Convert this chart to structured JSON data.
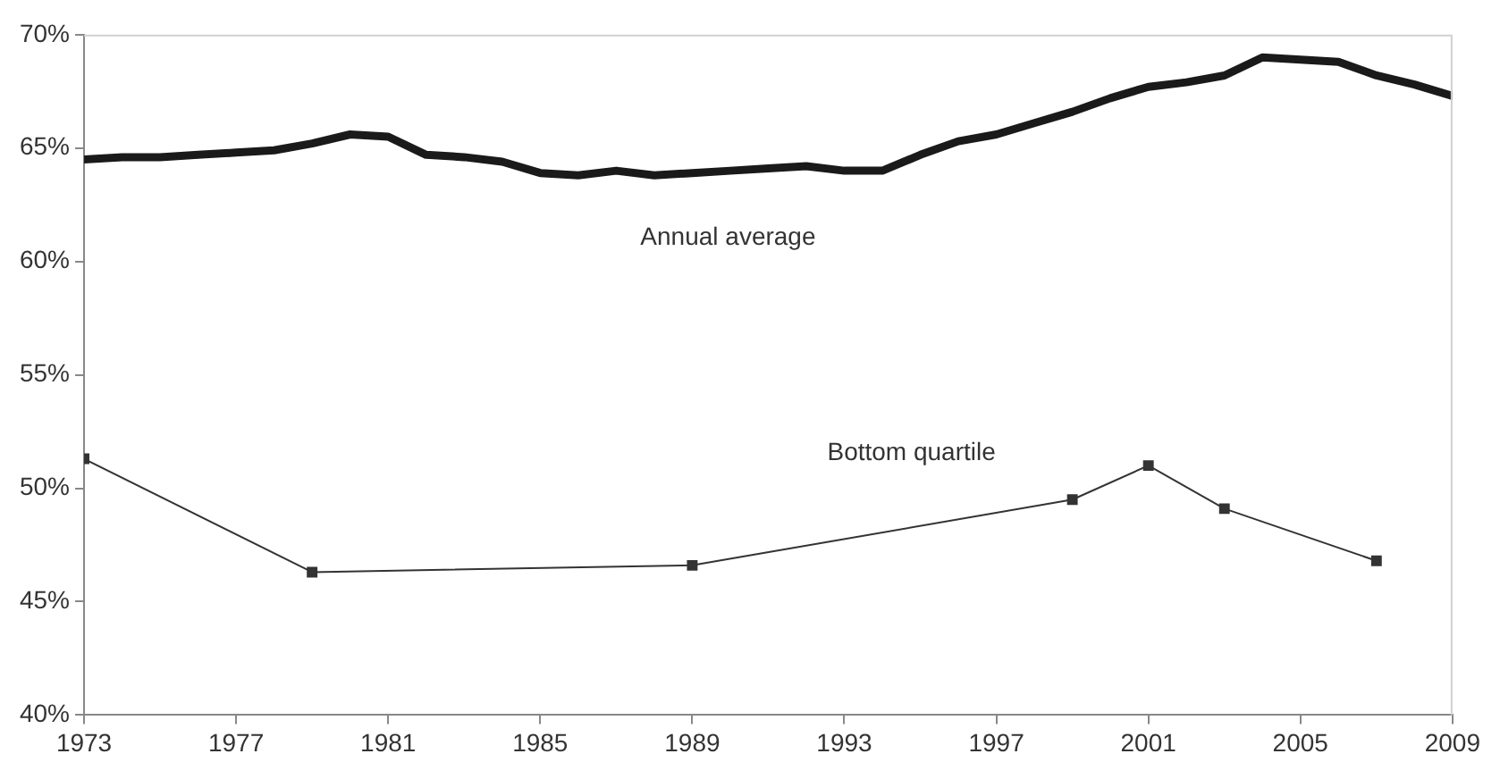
{
  "chart_data": {
    "type": "line",
    "xlim": [
      1973,
      2009
    ],
    "xticks": [
      1973,
      1977,
      1981,
      1985,
      1989,
      1993,
      1997,
      2001,
      2005,
      2009
    ],
    "ylim": [
      40,
      70
    ],
    "yticks": [
      {
        "value": 40,
        "label": "40%"
      },
      {
        "value": 45,
        "label": "45%"
      },
      {
        "value": 50,
        "label": "50%"
      },
      {
        "value": 55,
        "label": "55%"
      },
      {
        "value": 60,
        "label": "60%"
      },
      {
        "value": 65,
        "label": "65%"
      },
      {
        "value": 70,
        "label": "70%"
      }
    ],
    "grid": false,
    "legend": false,
    "series": [
      {
        "name": "Annual average",
        "color": "#1a1a1a",
        "marker": "none",
        "x": [
          1973,
          1974,
          1975,
          1976,
          1977,
          1978,
          1979,
          1980,
          1981,
          1982,
          1983,
          1984,
          1985,
          1986,
          1987,
          1988,
          1989,
          1990,
          1991,
          1992,
          1993,
          1994,
          1995,
          1996,
          1997,
          1998,
          1999,
          2000,
          2001,
          2002,
          2003,
          2004,
          2005,
          2006,
          2007,
          2008,
          2009
        ],
        "values": [
          64.5,
          64.6,
          64.6,
          64.7,
          64.8,
          64.9,
          65.2,
          65.6,
          65.5,
          64.7,
          64.6,
          64.4,
          63.9,
          63.8,
          64.0,
          63.8,
          63.9,
          64.0,
          64.1,
          64.2,
          64.0,
          64.0,
          64.7,
          65.3,
          65.6,
          66.1,
          66.6,
          67.2,
          67.7,
          67.9,
          68.2,
          69.0,
          68.9,
          68.8,
          68.2,
          67.8,
          67.3
        ]
      },
      {
        "name": "Bottom quartile",
        "color": "#333333",
        "marker": "square",
        "x": [
          1973,
          1979,
          1989,
          1999,
          2001,
          2003,
          2007
        ],
        "values": [
          51.3,
          46.3,
          46.6,
          49.5,
          51.0,
          49.1,
          46.8
        ]
      }
    ]
  }
}
